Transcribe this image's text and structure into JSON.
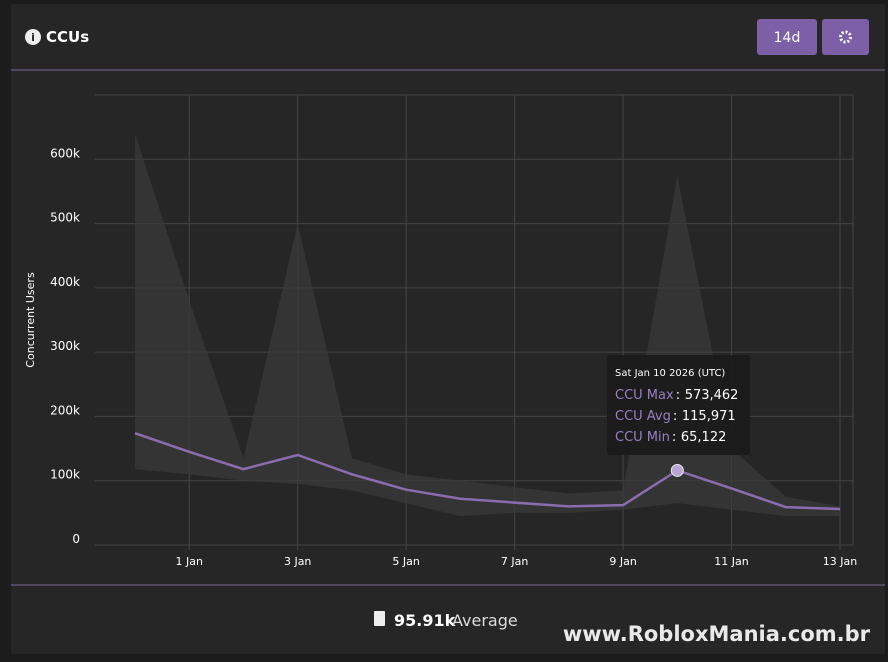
{
  "header": {
    "title": "CCUs",
    "range_button": "14d"
  },
  "chart_data": {
    "type": "line",
    "y_label": "Concurrent Users",
    "categories": [
      null,
      "1 Jan",
      null,
      "3 Jan",
      null,
      "5 Jan",
      null,
      "7 Jan",
      null,
      "9 Jan",
      null,
      "11 Jan",
      null,
      "13 Jan"
    ],
    "series": [
      {
        "name": "CCU Max",
        "color": "#3a3a3a",
        "values": [
          640000,
          380000,
          135000,
          500000,
          135000,
          110000,
          100000,
          90000,
          80000,
          85000,
          573462,
          150000,
          75000,
          60000
        ],
        "value_labels": [
          null,
          null,
          null,
          null,
          null,
          null,
          null,
          null,
          null,
          null,
          "573,462",
          null,
          null,
          null
        ]
      },
      {
        "name": "CCU Avg",
        "color": "#8c6cb0",
        "values": [
          174000,
          145000,
          118000,
          140000,
          110000,
          86000,
          72000,
          66000,
          60000,
          62000,
          115971,
          88000,
          59000,
          56000
        ],
        "value_labels": [
          null,
          null,
          null,
          null,
          null,
          null,
          null,
          null,
          null,
          null,
          "115,971",
          null,
          null,
          null
        ]
      },
      {
        "name": "CCU Min",
        "color": "#3a3a3a",
        "values": [
          118000,
          110000,
          100000,
          95000,
          85000,
          65000,
          45000,
          50000,
          50000,
          55000,
          65122,
          55000,
          45000,
          45000
        ],
        "value_labels": [
          null,
          null,
          null,
          null,
          null,
          null,
          null,
          null,
          null,
          null,
          "65,122",
          null,
          null,
          null
        ]
      }
    ],
    "tooltip_title": "Sat Jan 10 2026 (UTC)",
    "ylim": [
      0,
      700000
    ],
    "yticks": [
      {
        "value": 0,
        "label": "0"
      },
      {
        "value": 100000,
        "label": "100k"
      },
      {
        "value": 200000,
        "label": "200k"
      },
      {
        "value": 300000,
        "label": "300k"
      },
      {
        "value": 400000,
        "label": "400k"
      },
      {
        "value": 500000,
        "label": "500k"
      },
      {
        "value": 600000,
        "label": "600k"
      }
    ],
    "grid": true
  },
  "footer": {
    "value": "95.91k",
    "label": "Average"
  },
  "watermark": "www.RobloxMania.com.br"
}
